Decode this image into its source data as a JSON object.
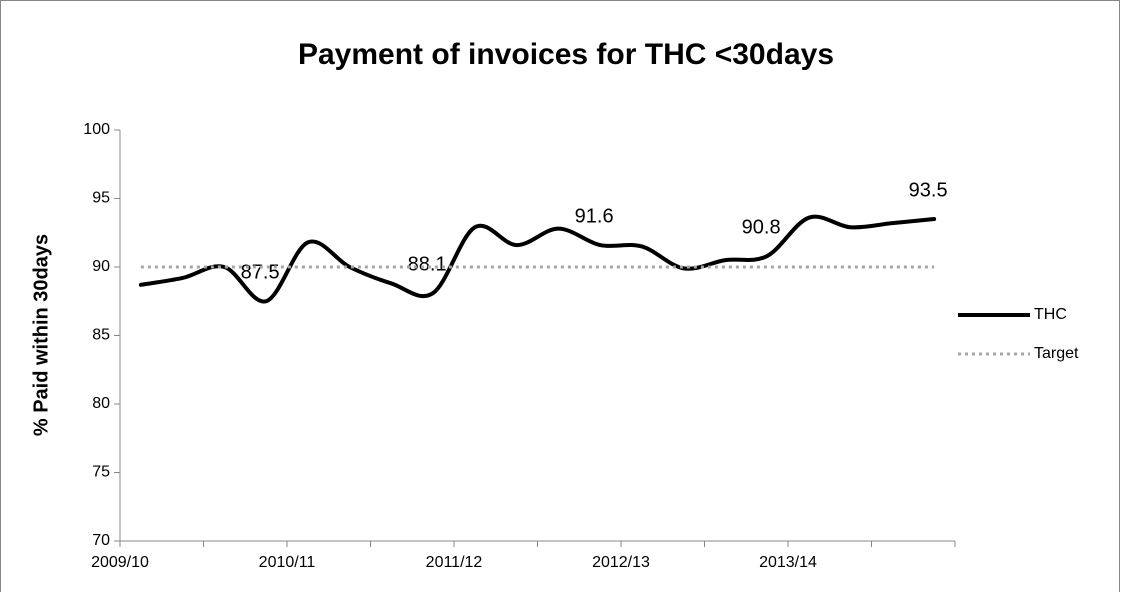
{
  "chart_data": {
    "type": "line",
    "title": "Payment of invoices for THC <30days",
    "y_label": "% Paid within 30days",
    "categories": [
      "2009/10",
      null,
      null,
      null,
      "2010/11",
      null,
      null,
      null,
      "2011/12",
      null,
      null,
      null,
      "2012/13",
      null,
      null,
      null,
      "2013/14",
      null,
      null,
      null
    ],
    "series": [
      {
        "name": "THC",
        "color": "#000000",
        "style": "solid",
        "values": [
          88.7,
          89.2,
          90.0,
          87.5,
          91.8,
          90.0,
          88.8,
          88.1,
          92.9,
          91.6,
          92.8,
          91.6,
          91.5,
          89.9,
          90.5,
          90.8,
          93.6,
          92.9,
          93.2,
          93.5
        ],
        "value_labels": [
          null,
          null,
          null,
          "87.5",
          null,
          null,
          null,
          "88.1",
          null,
          null,
          null,
          "91.6",
          null,
          null,
          null,
          "90.8",
          null,
          null,
          null,
          "93.5"
        ]
      },
      {
        "name": "Target",
        "color": "#a6a6a6",
        "style": "dotted",
        "values": [
          90,
          90,
          90,
          90,
          90,
          90,
          90,
          90,
          90,
          90,
          90,
          90,
          90,
          90,
          90,
          90,
          90,
          90,
          90,
          90
        ]
      }
    ],
    "ylim": [
      70,
      100
    ],
    "yticks": [
      70,
      75,
      80,
      85,
      90,
      95,
      100
    ],
    "grid": false,
    "legend": "right"
  }
}
